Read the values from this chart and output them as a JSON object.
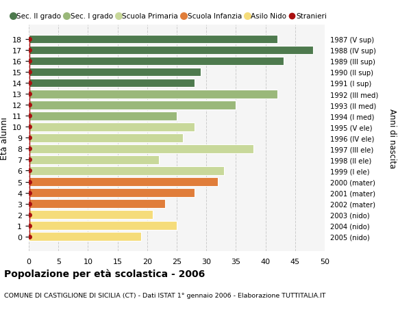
{
  "ages": [
    0,
    1,
    2,
    3,
    4,
    5,
    6,
    7,
    8,
    9,
    10,
    11,
    12,
    13,
    14,
    15,
    16,
    17,
    18
  ],
  "values": [
    19,
    25,
    21,
    23,
    28,
    32,
    33,
    22,
    38,
    26,
    28,
    25,
    35,
    42,
    28,
    29,
    43,
    48,
    42
  ],
  "right_labels": [
    "2005 (nido)",
    "2004 (nido)",
    "2003 (nido)",
    "2002 (mater)",
    "2001 (mater)",
    "2000 (mater)",
    "1999 (I ele)",
    "1998 (II ele)",
    "1997 (III ele)",
    "1996 (IV ele)",
    "1995 (V ele)",
    "1994 (I med)",
    "1993 (II med)",
    "1992 (III med)",
    "1991 (I sup)",
    "1990 (II sup)",
    "1989 (III sup)",
    "1988 (IV sup)",
    "1987 (V sup)"
  ],
  "bar_colors": [
    "#f5dc7a",
    "#f5dc7a",
    "#f5dc7a",
    "#e07d3a",
    "#e07d3a",
    "#e07d3a",
    "#c8d89a",
    "#c8d89a",
    "#c8d89a",
    "#c8d89a",
    "#c8d89a",
    "#9ab87a",
    "#9ab87a",
    "#9ab87a",
    "#4e7a4e",
    "#4e7a4e",
    "#4e7a4e",
    "#4e7a4e",
    "#4e7a4e"
  ],
  "legend_labels": [
    "Sec. II grado",
    "Sec. I grado",
    "Scuola Primaria",
    "Scuola Infanzia",
    "Asilo Nido",
    "Stranieri"
  ],
  "legend_colors": [
    "#4e7a4e",
    "#9ab87a",
    "#c8d89a",
    "#e07d3a",
    "#f5dc7a",
    "#aa1111"
  ],
  "ylabel": "Età alunni",
  "right_axis_label": "Anni di nascita",
  "title": "Popolazione per età scolastica - 2006",
  "subtitle": "COMUNE DI CASTIGLIONE DI SICILIA (CT) - Dati ISTAT 1° gennaio 2006 - Elaborazione TUTTITALIA.IT",
  "xlim": [
    0,
    50
  ],
  "xticks": [
    0,
    5,
    10,
    15,
    20,
    25,
    30,
    35,
    40,
    45,
    50
  ],
  "bg_color": "#f5f5f5",
  "grid_color": "#cccccc",
  "bar_height": 0.78
}
